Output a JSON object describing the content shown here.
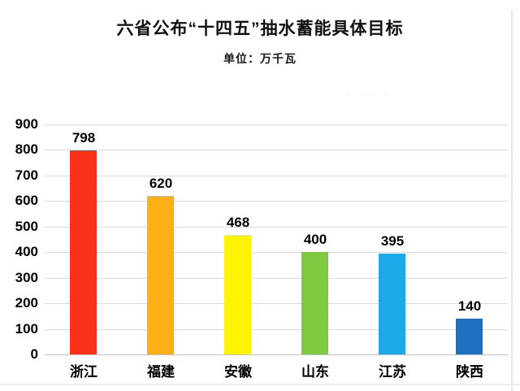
{
  "header": {
    "title": "六省公布“十四五”抽水蓄能具体目标",
    "subtitle": "单位：万千瓦"
  },
  "watermark": "· ·· ·",
  "chart_data": {
    "type": "bar",
    "title": "六省公布“十四五”抽水蓄能具体目标",
    "unit_label": "单位：万千瓦",
    "categories": [
      "浙江",
      "福建",
      "安徽",
      "山东",
      "江苏",
      "陕西"
    ],
    "values": [
      798,
      620,
      468,
      400,
      395,
      140
    ],
    "value_labels": [
      "798",
      "620",
      "468",
      "400",
      "395",
      "140"
    ],
    "bar_colors": [
      "#f93119",
      "#fbb116",
      "#fef400",
      "#7fc940",
      "#1ba9e7",
      "#1c70bf"
    ],
    "xlabel": "",
    "ylabel": "",
    "ylim": [
      0,
      900
    ],
    "yticks": [
      0,
      100,
      200,
      300,
      400,
      500,
      600,
      700,
      800,
      900
    ],
    "grid": true,
    "gridline_color": "#d9d9d9",
    "axis_line_color": "#c2c2c2",
    "legend": false,
    "value_labels_shown": true
  }
}
